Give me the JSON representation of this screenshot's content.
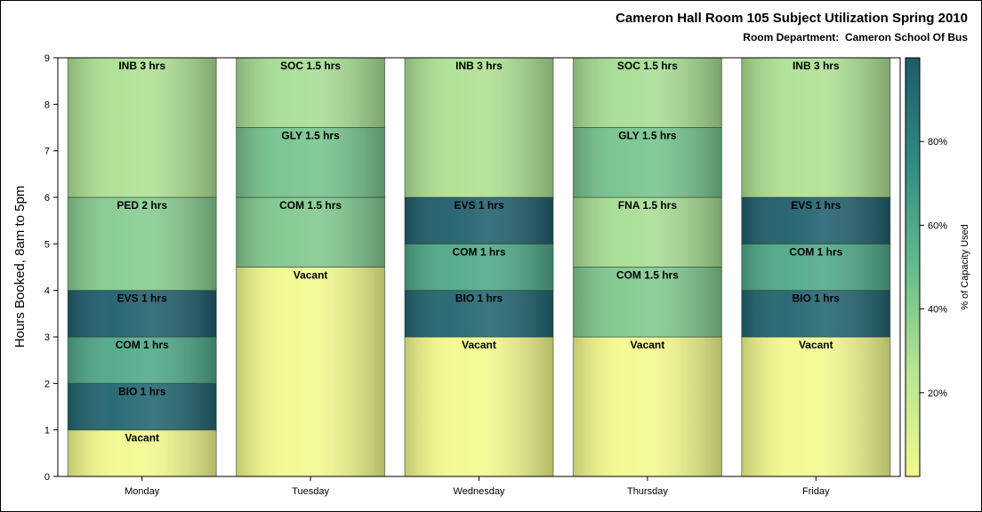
{
  "chart_data": {
    "type": "bar",
    "title": "Cameron Hall Room 105 Subject Utilization Spring 2010",
    "subtitle": "Room Department:  Cameron School Of Bus",
    "ylabel": "Hours Booked, 8am to 5pm",
    "xlabel": "",
    "ylim": [
      0,
      9
    ],
    "yticks": [
      "0",
      "1",
      "2",
      "3",
      "4",
      "5",
      "6",
      "7",
      "8",
      "9"
    ],
    "categories": [
      "Monday",
      "Tuesday",
      "Wednesday",
      "Thursday",
      "Friday"
    ],
    "stacks": [
      {
        "day": "Monday",
        "segments": [
          {
            "label": "Vacant",
            "hours": 1,
            "capacity_pct": 0
          },
          {
            "label": "BIO 1 hrs",
            "hours": 1,
            "capacity_pct": 95
          },
          {
            "label": "COM 1 hrs",
            "hours": 1,
            "capacity_pct": 60
          },
          {
            "label": "EVS 1 hrs",
            "hours": 1,
            "capacity_pct": 98
          },
          {
            "label": "PED 2 hrs",
            "hours": 2,
            "capacity_pct": 40
          },
          {
            "label": "INB 3 hrs",
            "hours": 3,
            "capacity_pct": 28
          }
        ]
      },
      {
        "day": "Tuesday",
        "segments": [
          {
            "label": "Vacant",
            "hours": 4.5,
            "capacity_pct": 0
          },
          {
            "label": "COM 1.5 hrs",
            "hours": 1.5,
            "capacity_pct": 42
          },
          {
            "label": "GLY 1.5 hrs",
            "hours": 1.5,
            "capacity_pct": 45
          },
          {
            "label": "SOC 1.5 hrs",
            "hours": 1.5,
            "capacity_pct": 30
          }
        ]
      },
      {
        "day": "Wednesday",
        "segments": [
          {
            "label": "Vacant",
            "hours": 3,
            "capacity_pct": 0
          },
          {
            "label": "BIO 1 hrs",
            "hours": 1,
            "capacity_pct": 95
          },
          {
            "label": "COM 1 hrs",
            "hours": 1,
            "capacity_pct": 60
          },
          {
            "label": "EVS 1 hrs",
            "hours": 1,
            "capacity_pct": 98
          },
          {
            "label": "INB 3 hrs",
            "hours": 3,
            "capacity_pct": 28
          }
        ]
      },
      {
        "day": "Thursday",
        "segments": [
          {
            "label": "Vacant",
            "hours": 3,
            "capacity_pct": 0
          },
          {
            "label": "COM 1.5 hrs",
            "hours": 1.5,
            "capacity_pct": 42
          },
          {
            "label": "FNA 1.5 hrs",
            "hours": 1.5,
            "capacity_pct": 30
          },
          {
            "label": "GLY 1.5 hrs",
            "hours": 1.5,
            "capacity_pct": 45
          },
          {
            "label": "SOC 1.5 hrs",
            "hours": 1.5,
            "capacity_pct": 30
          }
        ]
      },
      {
        "day": "Friday",
        "segments": [
          {
            "label": "Vacant",
            "hours": 3,
            "capacity_pct": 0
          },
          {
            "label": "BIO 1 hrs",
            "hours": 1,
            "capacity_pct": 95
          },
          {
            "label": "COM 1 hrs",
            "hours": 1,
            "capacity_pct": 60
          },
          {
            "label": "EVS 1 hrs",
            "hours": 1,
            "capacity_pct": 98
          },
          {
            "label": "INB 3 hrs",
            "hours": 3,
            "capacity_pct": 28
          }
        ]
      }
    ],
    "legend": {
      "title": "% of Capacity Used",
      "placement": "right",
      "ticks": [
        {
          "value": 20,
          "label": "20%"
        },
        {
          "value": 40,
          "label": "40%"
        },
        {
          "value": 60,
          "label": "60%"
        },
        {
          "value": 80,
          "label": "80%"
        }
      ],
      "range": [
        0,
        100
      ],
      "colorscale": [
        "#f2f98c",
        "#b7e593",
        "#64bb8c",
        "#2e8c82",
        "#1e5a6a"
      ]
    },
    "grid": false
  }
}
